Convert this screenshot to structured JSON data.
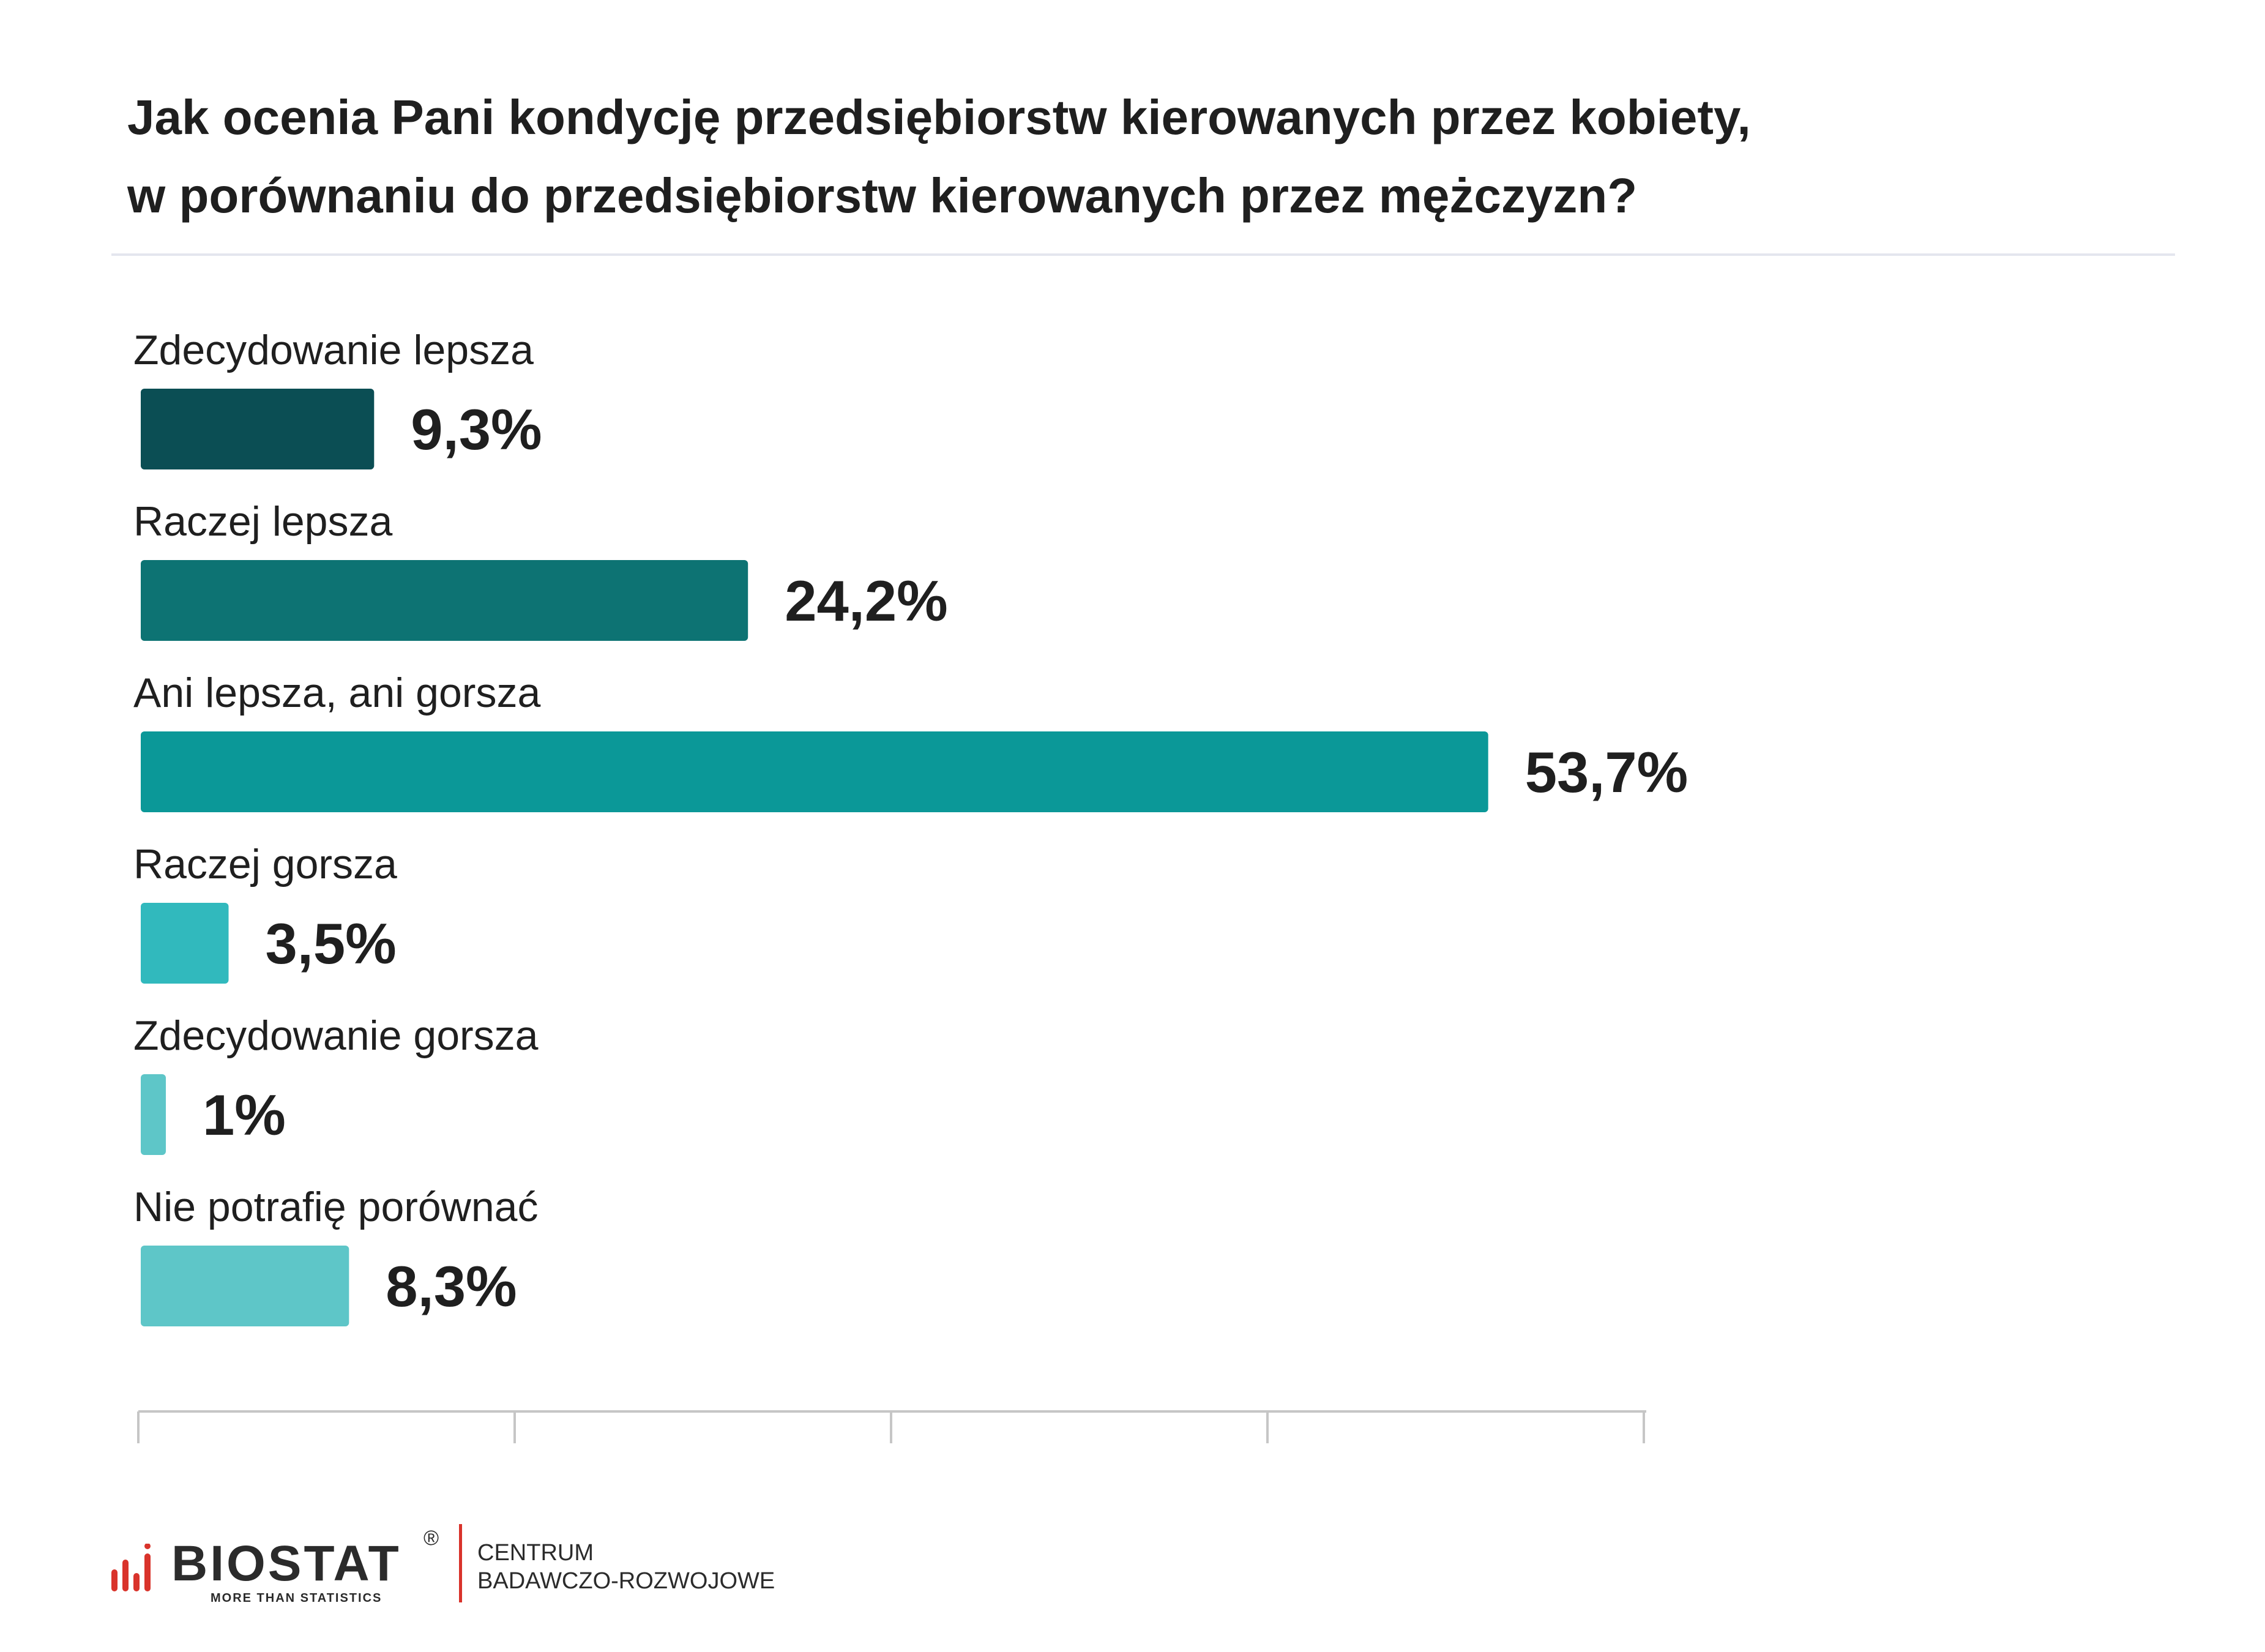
{
  "chart_data": {
    "type": "bar",
    "orientation": "horizontal",
    "title": "Jak ocenia Pani kondycję przedsiębiorstw kierowanych przez kobiety, w porównaniu do przedsiębiorstw kierowanych przez mężczyzn?",
    "title_lines": [
      "Jak ocenia Pani kondycję przedsiębiorstw kierowanych przez kobiety,",
      "w porównaniu do przedsiębiorstw kierowanych przez mężczyzn?"
    ],
    "categories": [
      "Zdecydowanie lepsza",
      "Raczej lepsza",
      "Ani lepsza, ani gorsza",
      "Raczej gorsza",
      "Zdecydowanie gorsza",
      "Nie potrafię porównać"
    ],
    "values": [
      9.3,
      24.2,
      53.7,
      3.5,
      1,
      8.3
    ],
    "value_labels": [
      "9,3%",
      "24,2%",
      "53,7%",
      "3,5%",
      "1%",
      "8,3%"
    ],
    "bar_colors": [
      "#0b4e54",
      "#0d7373",
      "#0b9898",
      "#31b9bd",
      "#5ec6c8",
      "#5ec6c8"
    ],
    "unit": "%",
    "xlim": [
      0,
      60
    ],
    "x_ticks": [
      0,
      15,
      30,
      45,
      60
    ],
    "xlabel": "",
    "ylabel": "",
    "grid": false,
    "legend": "none"
  },
  "footer": {
    "brand": "BIOSTAT",
    "registered_mark": "®",
    "tagline": "MORE THAN STATISTICS",
    "center_line1": "CENTRUM",
    "center_line2": "BADAWCZO-ROZWOJOWE",
    "brand_color": "#d9332b"
  }
}
